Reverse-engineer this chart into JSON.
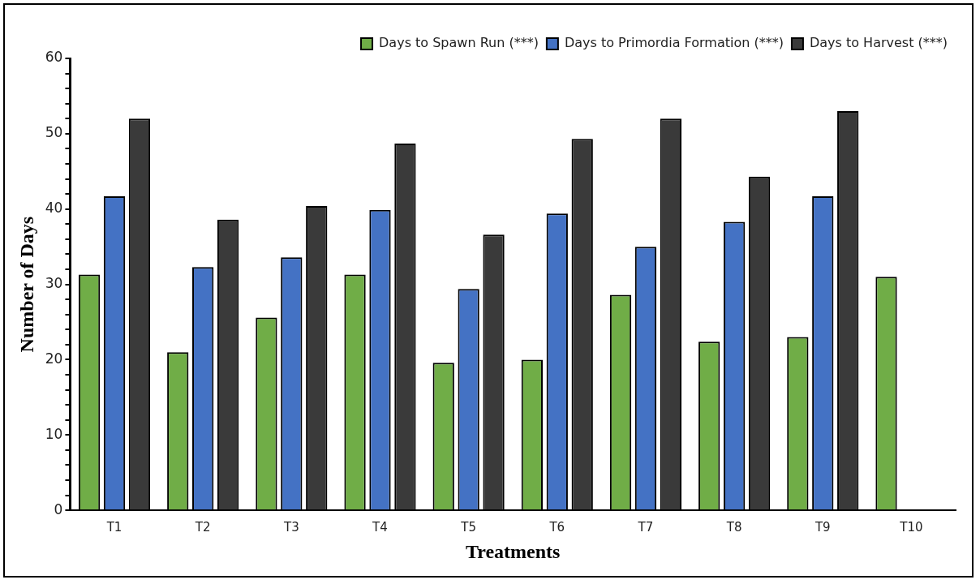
{
  "chart_data": {
    "type": "bar",
    "xlabel": "Treatments",
    "ylabel": "Number of Days",
    "categories": [
      "T1",
      "T2",
      "T3",
      "T4",
      "T5",
      "T6",
      "T7",
      "T8",
      "T9",
      "T10"
    ],
    "series": [
      {
        "name": "Days to Spawn Run (***)",
        "color": "#70ad47",
        "values": [
          31.3,
          21.0,
          25.6,
          31.3,
          19.6,
          20.0,
          28.6,
          22.4,
          23.0,
          31.0
        ]
      },
      {
        "name": "Days to Primordia Formation (***)",
        "color": "#4472c4",
        "values": [
          41.7,
          32.3,
          33.6,
          39.9,
          29.4,
          39.4,
          35.0,
          38.3,
          41.7,
          null
        ]
      },
      {
        "name": "Days to Harvest (***)",
        "color": "#3a3a3a",
        "values": [
          52.0,
          38.6,
          40.4,
          48.7,
          36.6,
          49.3,
          52.0,
          44.3,
          53.0,
          null
        ]
      }
    ],
    "ylim": [
      0,
      60
    ],
    "yticks": [
      0,
      {
        "value": 2,
        "label": null
      },
      {
        "value": 4,
        "label": null
      },
      {
        "value": 6,
        "label": null
      },
      {
        "value": 8,
        "label": null
      },
      10,
      {
        "value": 12,
        "label": null
      },
      {
        "value": 14,
        "label": null
      },
      {
        "value": 16,
        "label": null
      },
      {
        "value": 18,
        "label": null
      },
      20,
      {
        "value": 22,
        "label": null
      },
      {
        "value": 24,
        "label": null
      },
      {
        "value": 26,
        "label": null
      },
      {
        "value": 28,
        "label": null
      },
      30,
      {
        "value": 32,
        "label": null
      },
      {
        "value": 34,
        "label": null
      },
      {
        "value": 36,
        "label": null
      },
      {
        "value": 38,
        "label": null
      },
      40,
      {
        "value": 42,
        "label": null
      },
      {
        "value": 44,
        "label": null
      },
      {
        "value": 46,
        "label": null
      },
      {
        "value": 48,
        "label": null
      },
      50,
      {
        "value": 52,
        "label": null
      },
      {
        "value": 54,
        "label": null
      },
      {
        "value": 56,
        "label": null
      },
      {
        "value": 58,
        "label": null
      },
      60
    ],
    "grid": false,
    "legend": "top right"
  }
}
